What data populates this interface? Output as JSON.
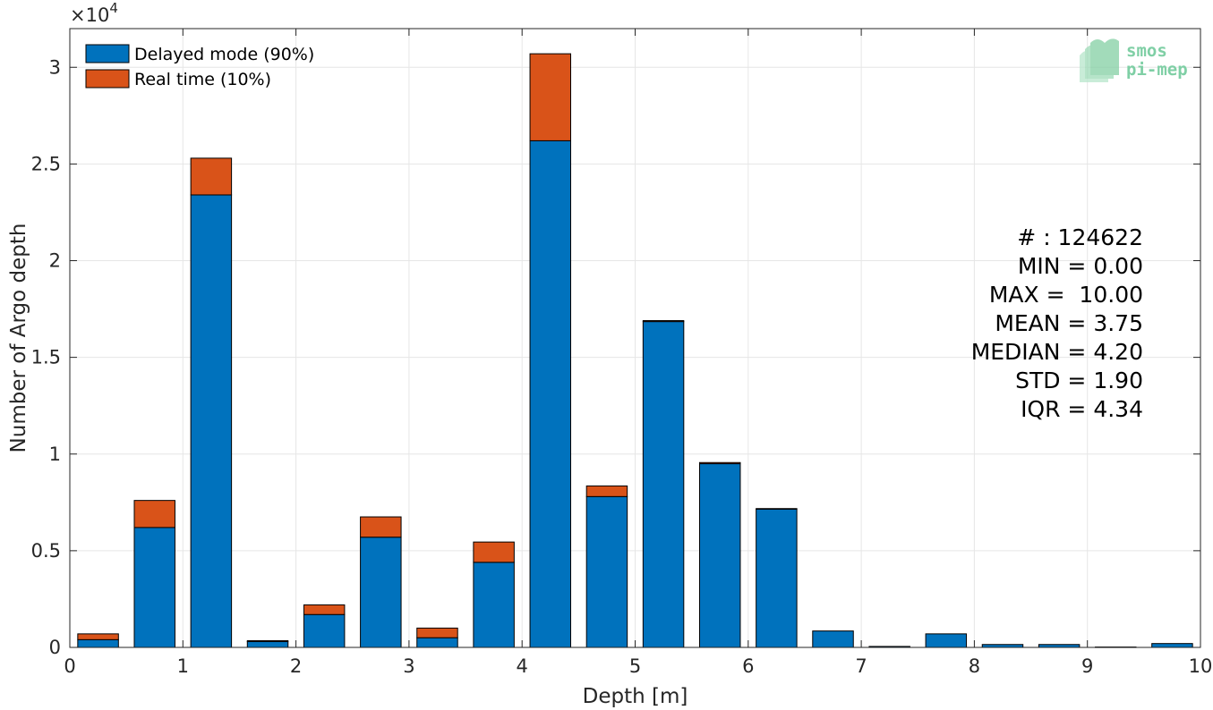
{
  "chart_data": {
    "type": "bar",
    "stacked": true,
    "xlabel": "Depth [m]",
    "ylabel": "Number of Argo depth",
    "y_exponent_label": "×10",
    "y_exponent_power": "4",
    "xlim": [
      0,
      10
    ],
    "ylim": [
      0,
      32000
    ],
    "xticks": [
      "0",
      "1",
      "2",
      "3",
      "4",
      "5",
      "6",
      "7",
      "8",
      "9",
      "10"
    ],
    "yticks": [
      "0",
      "0.5",
      "1",
      "1.5",
      "2",
      "2.5",
      "3"
    ],
    "ytick_values": [
      0,
      5000,
      10000,
      15000,
      20000,
      25000,
      30000
    ],
    "grid": true,
    "legend_position": "top-left",
    "bin_width": 0.5,
    "x": [
      0.25,
      0.75,
      1.25,
      1.75,
      2.25,
      2.75,
      3.25,
      3.75,
      4.25,
      4.75,
      5.25,
      5.75,
      6.25,
      6.75,
      7.25,
      7.75,
      8.25,
      8.75,
      9.25,
      9.75
    ],
    "series": [
      {
        "name": "Delayed mode (90%)",
        "color": "#0072bd",
        "values": [
          400,
          6200,
          23400,
          300,
          1700,
          5700,
          500,
          4400,
          26200,
          7800,
          16850,
          9500,
          7150,
          850,
          50,
          700,
          150,
          150,
          20,
          200
        ]
      },
      {
        "name": "Real time (10%)",
        "color": "#d95319",
        "values": [
          300,
          1400,
          1900,
          50,
          500,
          1050,
          500,
          1050,
          4500,
          550,
          50,
          60,
          30,
          0,
          0,
          0,
          0,
          0,
          0,
          0
        ]
      }
    ],
    "annotations": [
      "# : 124622",
      "MIN = 0.00",
      "MAX =  10.00",
      "MEAN = 3.75",
      "MEDIAN = 4.20",
      "STD = 1.90",
      "IQR = 4.34"
    ]
  },
  "logo": {
    "line1": "smos",
    "line2": "pi-mep"
  }
}
